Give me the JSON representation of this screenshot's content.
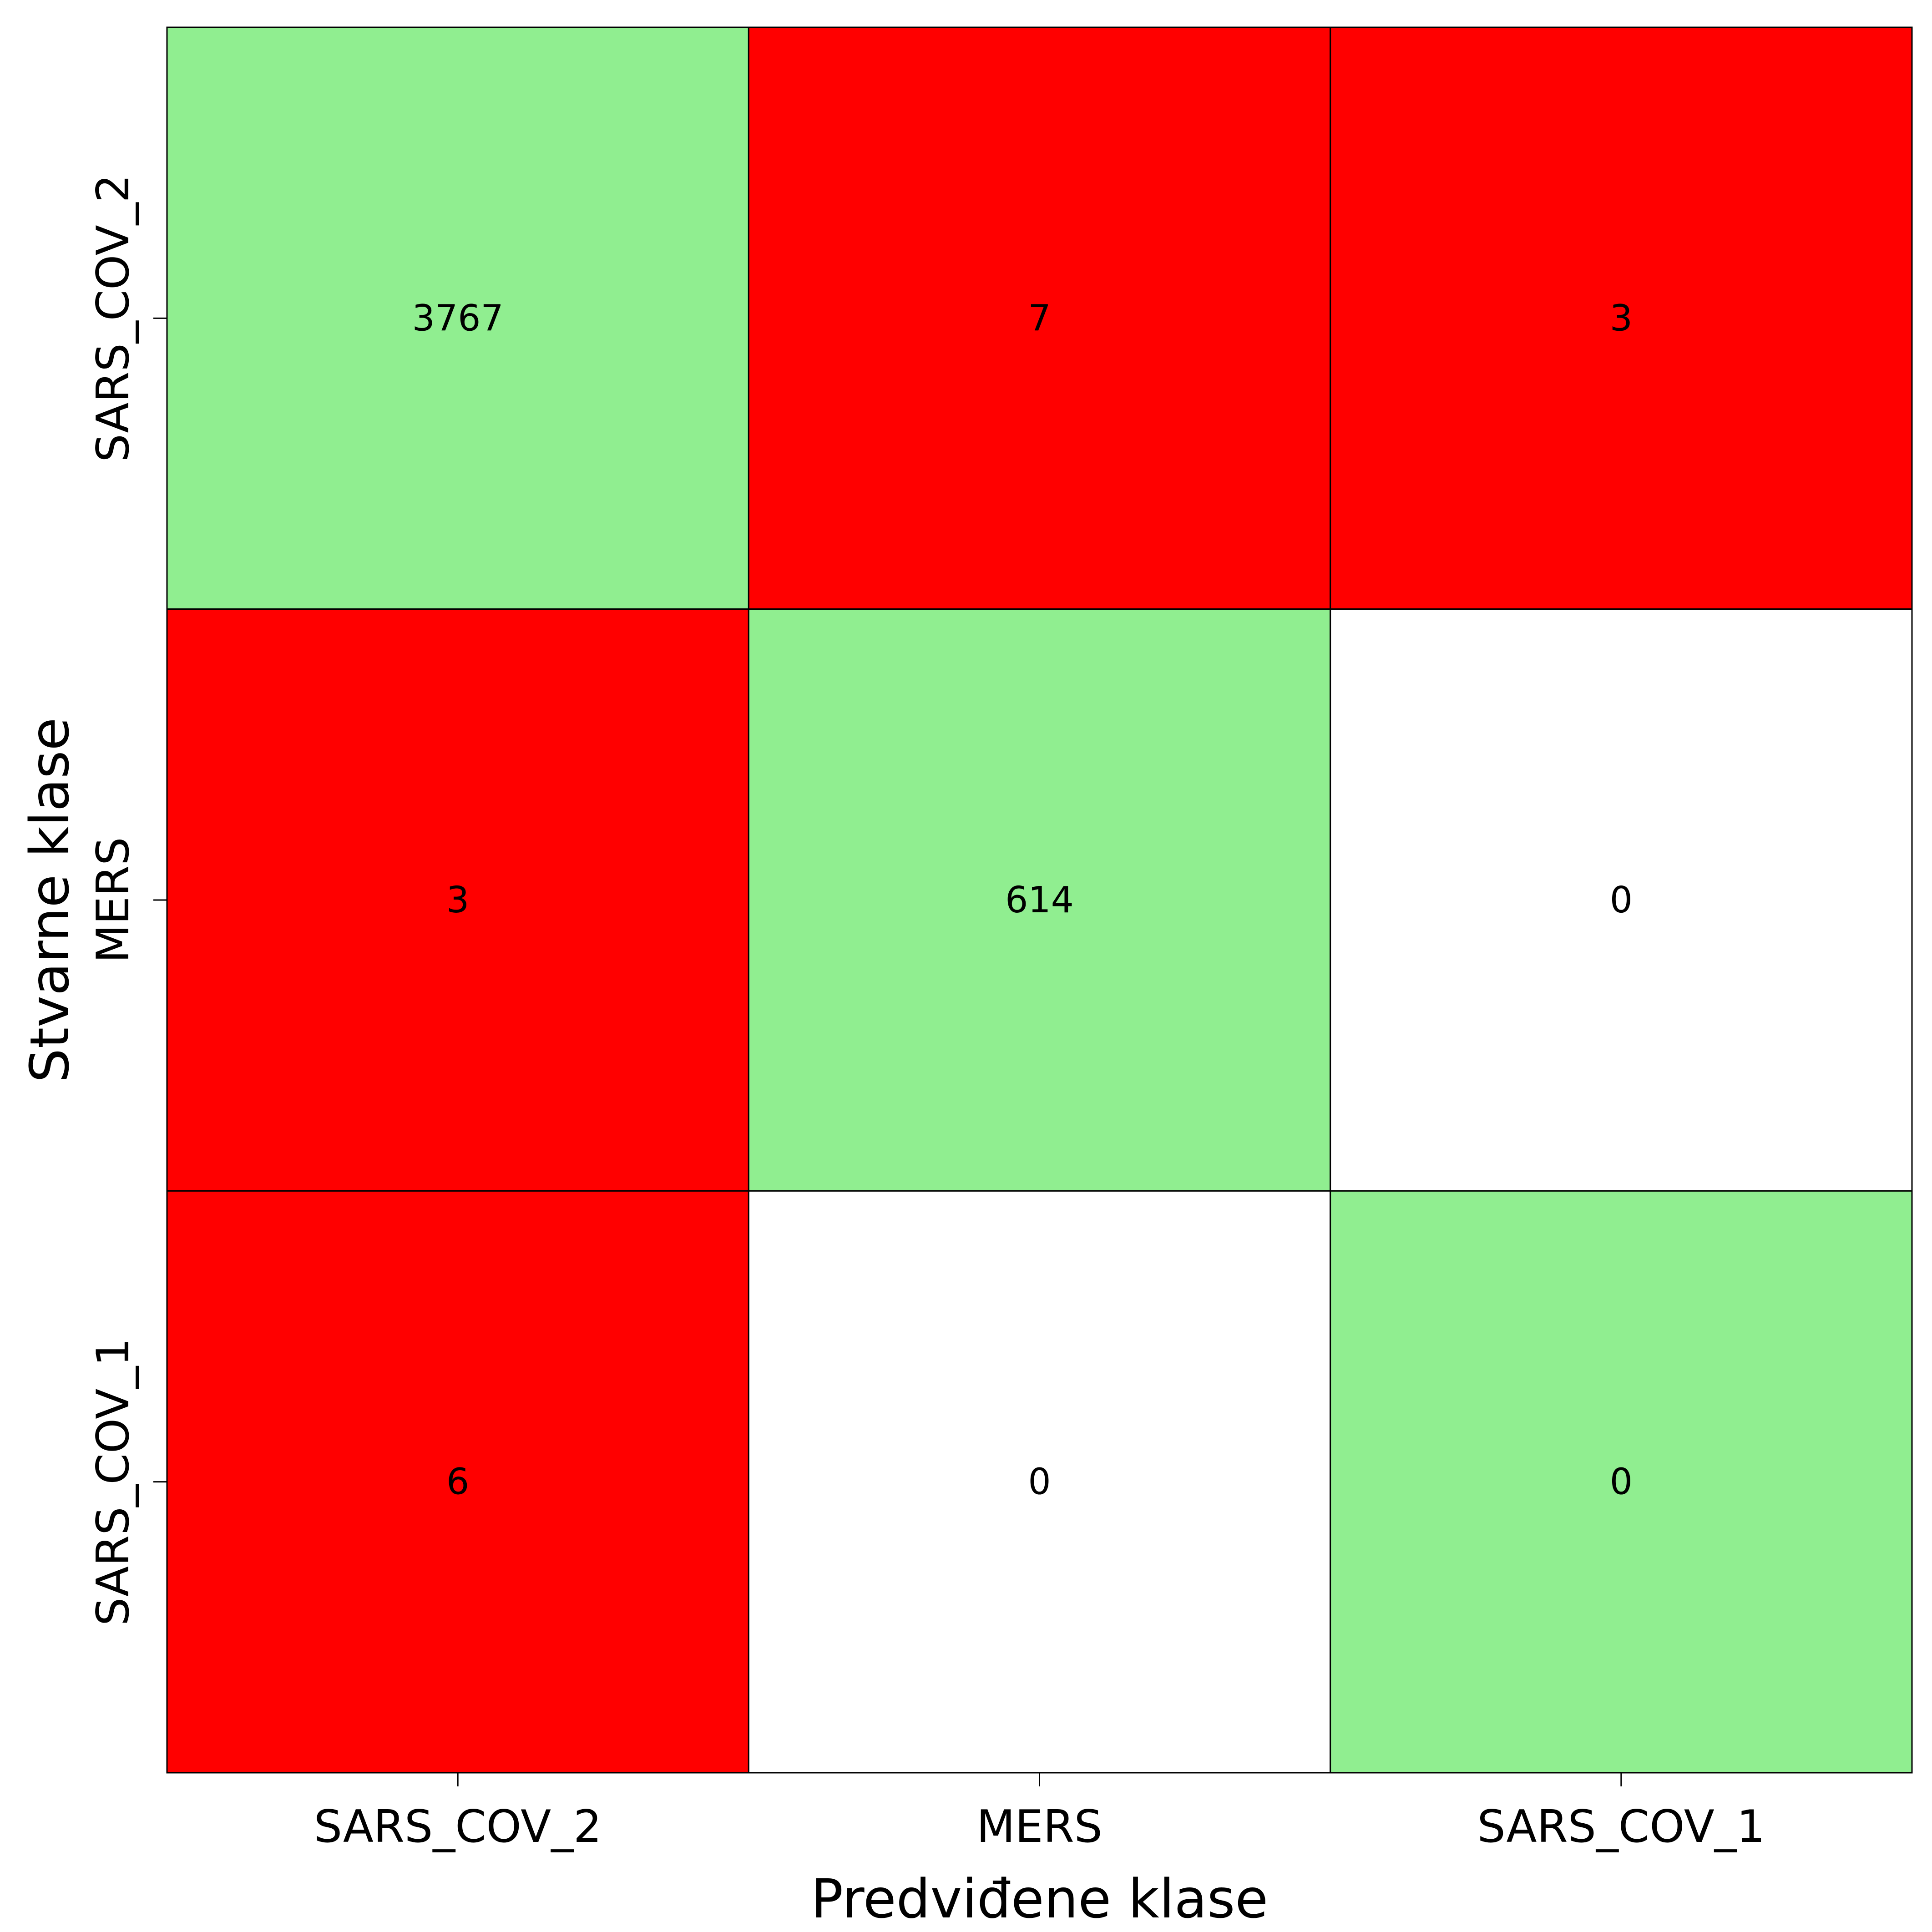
{
  "chart_data": {
    "type": "heatmap",
    "title": "",
    "xlabel": "Predviđene klase",
    "ylabel": "Stvarne klase",
    "x_categories": [
      "SARS_COV_2",
      "MERS",
      "SARS_COV_1"
    ],
    "y_categories": [
      "SARS_COV_2",
      "MERS",
      "SARS_COV_1"
    ],
    "values": [
      [
        3767,
        7,
        3
      ],
      [
        3,
        614,
        0
      ],
      [
        6,
        0,
        0
      ]
    ],
    "colors": {
      "correct": "#90ee90",
      "error": "#ff0000",
      "zero": "#ffffff",
      "cell_border": "#000000"
    },
    "grid": false,
    "legend": "none"
  }
}
